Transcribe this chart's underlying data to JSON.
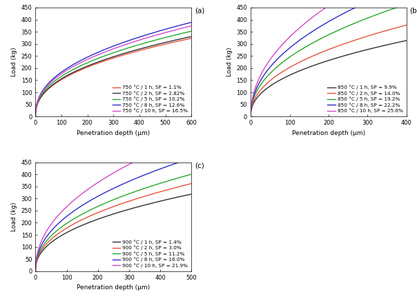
{
  "subplot_a": {
    "title_label": "(a)",
    "xlabel": "Penetration depth (μm)",
    "ylabel": "Load (kg)",
    "xlim": [
      0,
      600
    ],
    "ylim": [
      0,
      450
    ],
    "xticks": [
      0,
      100,
      200,
      300,
      400,
      500,
      600
    ],
    "yticks": [
      0,
      50,
      100,
      150,
      200,
      250,
      300,
      350,
      400,
      450
    ],
    "curves": [
      {
        "label": "750 °C / 1 h, SP = 1.1%",
        "color": "#e8503a",
        "exponent": 0.42,
        "scale": 22.0
      },
      {
        "label": "750 °C / 2 h, SP = 2.82%",
        "color": "#2e2e2e",
        "exponent": 0.42,
        "scale": 22.5
      },
      {
        "label": "750 °C / 5 h, SP = 10.2%",
        "color": "#26a629",
        "exponent": 0.42,
        "scale": 24.0
      },
      {
        "label": "750 °C / 8 h, SP = 12.6%",
        "color": "#2929c8",
        "exponent": 0.42,
        "scale": 26.5
      },
      {
        "label": "750 °C / 10 h, SP = 16.5%",
        "color": "#d446c8",
        "exponent": 0.42,
        "scale": 25.5
      }
    ],
    "legend_loc": "lower right"
  },
  "subplot_b": {
    "title_label": "(b)",
    "xlabel": "Penetration depth (μm)",
    "ylabel": "Load (kg)",
    "xlim": [
      0,
      400
    ],
    "ylim": [
      0,
      450
    ],
    "xticks": [
      0,
      100,
      200,
      300,
      400
    ],
    "yticks": [
      0,
      50,
      100,
      150,
      200,
      250,
      300,
      350,
      400,
      450
    ],
    "curves": [
      {
        "label": "850 °C / 1 h, SP = 9.9%",
        "color": "#2e2e2e",
        "exponent": 0.44,
        "scale": 22.5
      },
      {
        "label": "850 °C / 2 h, SP = 14.0%",
        "color": "#e8503a",
        "exponent": 0.45,
        "scale": 25.5
      },
      {
        "label": "850 °C / 5 h, SP = 19.2%",
        "color": "#26a629",
        "exponent": 0.46,
        "scale": 29.5
      },
      {
        "label": "850 °C / 8 h, SP = 22.2%",
        "color": "#2929c8",
        "exponent": 0.47,
        "scale": 32.5
      },
      {
        "label": "850 °C / 10 h, SP = 25.6%",
        "color": "#d446c8",
        "exponent": 0.48,
        "scale": 36.0
      }
    ],
    "legend_loc": "lower right"
  },
  "subplot_c": {
    "title_label": "(c)",
    "xlabel": "Penetration depth (μm)",
    "ylabel": "Load (kg)",
    "xlim": [
      0,
      500
    ],
    "ylim": [
      0,
      450
    ],
    "xticks": [
      0,
      100,
      200,
      300,
      400,
      500
    ],
    "yticks": [
      0,
      50,
      100,
      150,
      200,
      250,
      300,
      350,
      400,
      450
    ],
    "curves": [
      {
        "label": "900 °C / 1 h, SP = 1.4%",
        "color": "#2e2e2e",
        "exponent": 0.43,
        "scale": 22.0
      },
      {
        "label": "900 °C / 2 h, SP = 3.0%",
        "color": "#e8503a",
        "exponent": 0.44,
        "scale": 23.5
      },
      {
        "label": "900 °C / 5 h, SP = 11.2%",
        "color": "#26a629",
        "exponent": 0.44,
        "scale": 26.0
      },
      {
        "label": "900 °C / 8 h, SP = 16.0%",
        "color": "#2929c8",
        "exponent": 0.45,
        "scale": 28.5
      },
      {
        "label": "900 °C / 10 h, SP = 21.9%",
        "color": "#d446c8",
        "exponent": 0.46,
        "scale": 32.0
      }
    ],
    "legend_loc": "lower right"
  },
  "fig_width": 6.04,
  "fig_height": 4.4,
  "dpi": 100,
  "linewidth": 1.0,
  "fontsize_label": 6.5,
  "fontsize_tick": 6.0,
  "fontsize_legend": 5.2,
  "fontsize_panel_label": 7.5
}
